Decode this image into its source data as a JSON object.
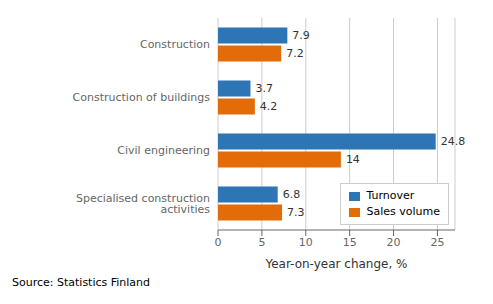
{
  "chart_data": {
    "type": "bar",
    "orientation": "horizontal",
    "categories": [
      "Construction",
      "Construction of buildings",
      "Civil engineering",
      "Specialised construction activities"
    ],
    "series": [
      {
        "name": "Turnover",
        "color": "#2E75B6",
        "values": [
          7.9,
          3.7,
          24.8,
          6.8
        ]
      },
      {
        "name": "Sales volume",
        "color": "#E36C09",
        "values": [
          7.2,
          4.2,
          14.0,
          7.3
        ]
      }
    ],
    "xlabel": "Year-on-year change, %",
    "xlim": [
      0,
      27
    ],
    "xticks": [
      0,
      5,
      10,
      15,
      20,
      25
    ],
    "grid": true,
    "legend": "lower right",
    "data_labels": true,
    "annotations": [
      "Source: Statistics Finland"
    ]
  }
}
